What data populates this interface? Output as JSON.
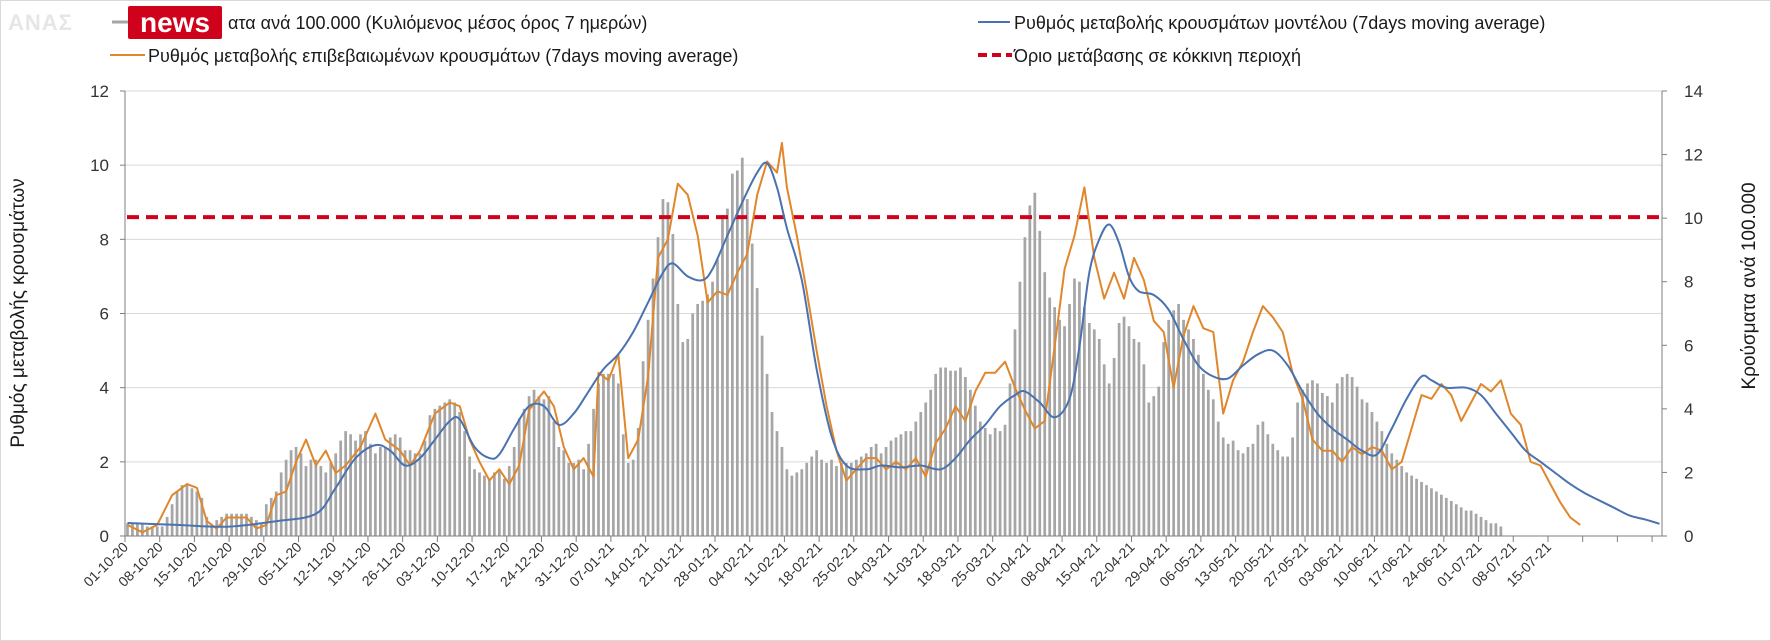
{
  "logo": {
    "prefix": "ΑΝΑΣ",
    "brand": "news"
  },
  "legend": {
    "bars": "ατα ανά 100.000 (Κυλιόμενος μέσος όρος 7 ημερών)",
    "confirmed": "Ρυθμός μεταβολής επιβεβαιωμένων κρουσμάτων (7days moving average)",
    "model": "Ρυθμός μεταβολής κρουσμάτων μοντέλου (7days moving average)",
    "threshold": "Όριο μετάβασης σε κόκκινη περιοχή"
  },
  "colors": {
    "bars": "#a6a6a6",
    "confirmed": "#e0862b",
    "model": "#4a72b0",
    "threshold": "#d0021b"
  },
  "chart_data": {
    "type": "bar+line",
    "x_ticks": [
      "01-10-20",
      "08-10-20",
      "15-10-20",
      "22-10-20",
      "29-10-20",
      "05-11-20",
      "12-11-20",
      "19-11-20",
      "26-11-20",
      "03-12-20",
      "10-12-20",
      "17-12-20",
      "24-12-20",
      "31-12-20",
      "07-01-21",
      "14-01-21",
      "21-01-21",
      "28-01-21",
      "04-02-21",
      "11-02-21",
      "18-02-21",
      "25-02-21",
      "04-03-21",
      "11-03-21",
      "18-03-21",
      "25-03-21",
      "01-04-21",
      "08-04-21",
      "15-04-21",
      "22-04-21",
      "29-04-21",
      "06-05-21",
      "13-05-21",
      "20-05-21",
      "27-05-21",
      "03-06-21",
      "10-06-21",
      "17-06-21",
      "24-06-21",
      "01-07-21",
      "08-07-21",
      "15-07-21"
    ],
    "y_left": {
      "label": "Ρυθμός μεταβολής κρουσμάτων",
      "ylim": [
        0,
        12
      ],
      "ticks": [
        "0",
        "2",
        "4",
        "6",
        "8",
        "10",
        "12"
      ]
    },
    "y_right": {
      "label": "Κρούσματα ανά 100.000",
      "ylim": [
        0,
        14
      ],
      "ticks": [
        "0",
        "2",
        "4",
        "6",
        "8",
        "10",
        "12",
        "14"
      ]
    },
    "threshold_value": 8.6,
    "bars_values_right_axis": [
      0.4,
      0.4,
      0.4,
      0.4,
      0.3,
      0.3,
      0.3,
      0.3,
      0.6,
      1,
      1.4,
      1.6,
      1.6,
      1.5,
      1.4,
      1.2,
      0.6,
      0.3,
      0.5,
      0.6,
      0.7,
      0.7,
      0.7,
      0.7,
      0.7,
      0.6,
      0.5,
      0.4,
      1,
      1.2,
      1.4,
      2,
      2.4,
      2.7,
      2.8,
      2.6,
      2.2,
      2.4,
      2.4,
      2.2,
      2,
      2.3,
      2.6,
      3,
      3.3,
      3.2,
      3,
      3.2,
      3.3,
      2.9,
      2.6,
      2.8,
      2.8,
      3.1,
      3.2,
      3.1,
      2.7,
      2.7,
      2.6,
      2.6,
      3,
      3.8,
      4,
      4.1,
      4.2,
      4.3,
      4.2,
      3.9,
      3.3,
      2.5,
      2.1,
      2,
      1.9,
      1.8,
      2,
      2.1,
      1.8,
      2.2,
      2.8,
      3.7,
      4,
      4.4,
      4.6,
      4.4,
      4.3,
      4.4,
      3.6,
      2.8,
      2.7,
      2.3,
      2.3,
      2.4,
      2.1,
      2.9,
      4,
      4.8,
      5.1,
      5.1,
      5.1,
      4.8,
      3.2,
      2.3,
      2.4,
      3.4,
      5.5,
      6.8,
      8.1,
      9.4,
      10.6,
      10.5,
      9.5,
      7.3,
      6.1,
      6.2,
      7,
      7.3,
      7.4,
      7.6,
      8,
      8.7,
      10.1,
      10.3,
      11.4,
      11.5,
      11.9,
      10.6,
      9.2,
      7.8,
      6.3,
      5.1,
      3.9,
      3.3,
      2.8,
      2.1,
      1.9,
      2,
      2.1,
      2.3,
      2.5,
      2.7,
      2.4,
      2.3,
      2.4,
      2.2,
      2.3,
      2.3,
      2.3,
      2.4,
      2.5,
      2.6,
      2.8,
      2.9,
      2.6,
      2.8,
      3,
      3.1,
      3.2,
      3.3,
      3.3,
      3.6,
      3.9,
      4.2,
      4.6,
      5.1,
      5.3,
      5.3,
      5.2,
      5.2,
      5.3,
      5,
      4.6,
      4.1,
      3.6,
      3.4,
      3.2,
      3.4,
      3.3,
      3.5,
      4.8,
      6.5,
      8,
      9.4,
      10.4,
      10.8,
      9.6,
      8.3,
      7.5,
      7.2,
      6.8,
      6.6,
      7.3,
      8.1,
      8,
      7.2,
      6.7,
      6.5,
      6.2,
      5.4,
      4.8,
      5.6,
      6.7,
      6.9,
      6.6,
      6.2,
      6.1,
      5.4,
      4.2,
      4.4,
      4.7,
      6.1,
      6.8,
      7.1,
      7.3,
      6.8,
      6.5,
      6.2,
      5.7,
      5.1,
      4.6,
      4.3,
      3.6,
      3.1,
      2.9,
      3,
      2.7,
      2.6,
      2.8,
      2.9,
      3.5,
      3.6,
      3.2,
      2.9,
      2.7,
      2.5,
      2.5,
      3.1,
      4.2,
      4.6,
      4.8,
      4.9,
      4.8,
      4.5,
      4.4,
      4.2,
      4.8,
      5,
      5.1,
      5,
      4.7,
      4.3,
      4.2,
      3.9,
      3.6,
      3.3,
      2.9,
      2.6,
      2.4,
      2.2,
      2,
      1.9,
      1.8,
      1.7,
      1.6,
      1.5,
      1.4,
      1.3,
      1.2,
      1.1,
      1,
      0.9,
      0.8,
      0.8,
      0.7,
      0.6,
      0.5,
      0.4,
      0.4,
      0.3
    ],
    "confirmed_rate_keypoints": [
      [
        0,
        0.3
      ],
      [
        3,
        0.1
      ],
      [
        6,
        0.3
      ],
      [
        9,
        1.1
      ],
      [
        12,
        1.4
      ],
      [
        14,
        1.3
      ],
      [
        16,
        0.4
      ],
      [
        18,
        0.2
      ],
      [
        20,
        0.5
      ],
      [
        24,
        0.5
      ],
      [
        26,
        0.2
      ],
      [
        28,
        0.3
      ],
      [
        30,
        1.1
      ],
      [
        32,
        1.2
      ],
      [
        34,
        2.0
      ],
      [
        36,
        2.6
      ],
      [
        38,
        1.9
      ],
      [
        40,
        2.3
      ],
      [
        42,
        1.7
      ],
      [
        44,
        1.9
      ],
      [
        47,
        2.4
      ],
      [
        50,
        3.3
      ],
      [
        52,
        2.6
      ],
      [
        55,
        2.3
      ],
      [
        57,
        1.9
      ],
      [
        59,
        2.3
      ],
      [
        62,
        3.3
      ],
      [
        65,
        3.6
      ],
      [
        67,
        3.5
      ],
      [
        69,
        2.6
      ],
      [
        71,
        2.0
      ],
      [
        73,
        1.5
      ],
      [
        75,
        1.8
      ],
      [
        77,
        1.4
      ],
      [
        79,
        1.9
      ],
      [
        81,
        3.4
      ],
      [
        84,
        3.9
      ],
      [
        86,
        3.5
      ],
      [
        88,
        2.4
      ],
      [
        90,
        1.8
      ],
      [
        92,
        2.1
      ],
      [
        94,
        1.6
      ],
      [
        95,
        4.4
      ],
      [
        97,
        4.2
      ],
      [
        99,
        4.9
      ],
      [
        101,
        2.1
      ],
      [
        103,
        2.6
      ],
      [
        105,
        4.3
      ],
      [
        107,
        7.5
      ],
      [
        109,
        8.0
      ],
      [
        111,
        9.5
      ],
      [
        113,
        9.2
      ],
      [
        115,
        8.1
      ],
      [
        117,
        6.3
      ],
      [
        119,
        6.6
      ],
      [
        121,
        6.5
      ],
      [
        123,
        7.1
      ],
      [
        125,
        7.6
      ],
      [
        127,
        9.2
      ],
      [
        129,
        10.1
      ],
      [
        131,
        9.8
      ],
      [
        132,
        10.6
      ],
      [
        133,
        9.4
      ],
      [
        135,
        8.1
      ],
      [
        137,
        6.6
      ],
      [
        139,
        5.0
      ],
      [
        141,
        3.5
      ],
      [
        143,
        2.3
      ],
      [
        145,
        1.5
      ],
      [
        147,
        1.8
      ],
      [
        149,
        2.1
      ],
      [
        151,
        2.1
      ],
      [
        153,
        1.8
      ],
      [
        155,
        2.0
      ],
      [
        157,
        1.8
      ],
      [
        159,
        2.1
      ],
      [
        161,
        1.6
      ],
      [
        163,
        2.5
      ],
      [
        165,
        2.9
      ],
      [
        167,
        3.5
      ],
      [
        169,
        3.1
      ],
      [
        171,
        3.9
      ],
      [
        173,
        4.4
      ],
      [
        175,
        4.4
      ],
      [
        177,
        4.7
      ],
      [
        179,
        4.0
      ],
      [
        181,
        3.4
      ],
      [
        183,
        2.9
      ],
      [
        185,
        3.1
      ],
      [
        187,
        5.1
      ],
      [
        189,
        7.2
      ],
      [
        191,
        8.1
      ],
      [
        193,
        9.4
      ],
      [
        195,
        7.5
      ],
      [
        197,
        6.4
      ],
      [
        199,
        7.1
      ],
      [
        201,
        6.4
      ],
      [
        203,
        7.5
      ],
      [
        205,
        6.9
      ],
      [
        207,
        5.8
      ],
      [
        209,
        5.5
      ],
      [
        211,
        4.0
      ],
      [
        213,
        5.4
      ],
      [
        215,
        6.2
      ],
      [
        217,
        5.6
      ],
      [
        219,
        5.5
      ],
      [
        221,
        3.3
      ],
      [
        223,
        4.2
      ],
      [
        225,
        4.7
      ],
      [
        227,
        5.5
      ],
      [
        229,
        6.2
      ],
      [
        231,
        5.9
      ],
      [
        233,
        5.5
      ],
      [
        235,
        4.4
      ],
      [
        237,
        3.7
      ],
      [
        239,
        2.6
      ],
      [
        241,
        2.3
      ],
      [
        243,
        2.3
      ],
      [
        245,
        2.0
      ],
      [
        247,
        2.4
      ],
      [
        249,
        2.2
      ],
      [
        251,
        2.4
      ],
      [
        253,
        2.3
      ],
      [
        255,
        1.8
      ],
      [
        257,
        2.0
      ],
      [
        259,
        2.9
      ],
      [
        261,
        3.8
      ],
      [
        263,
        3.7
      ],
      [
        265,
        4.1
      ],
      [
        267,
        3.8
      ],
      [
        269,
        3.1
      ],
      [
        271,
        3.6
      ],
      [
        273,
        4.1
      ],
      [
        275,
        3.9
      ],
      [
        277,
        4.2
      ],
      [
        279,
        3.3
      ],
      [
        281,
        3.0
      ],
      [
        283,
        2.0
      ],
      [
        285,
        1.9
      ],
      [
        287,
        1.4
      ],
      [
        289,
        0.9
      ],
      [
        291,
        0.5
      ],
      [
        293,
        0.3
      ]
    ],
    "model_rate_keypoints": [
      [
        0,
        0.35
      ],
      [
        10,
        0.3
      ],
      [
        20,
        0.25
      ],
      [
        30,
        0.4
      ],
      [
        38,
        0.6
      ],
      [
        42,
        1.3
      ],
      [
        46,
        2.1
      ],
      [
        50,
        2.45
      ],
      [
        53,
        2.3
      ],
      [
        56,
        1.9
      ],
      [
        59,
        2.1
      ],
      [
        62,
        2.6
      ],
      [
        65,
        3.1
      ],
      [
        67,
        3.15
      ],
      [
        70,
        2.4
      ],
      [
        73,
        2.1
      ],
      [
        75,
        2.2
      ],
      [
        78,
        2.9
      ],
      [
        81,
        3.5
      ],
      [
        84,
        3.5
      ],
      [
        87,
        3.0
      ],
      [
        90,
        3.3
      ],
      [
        93,
        3.9
      ],
      [
        96,
        4.5
      ],
      [
        99,
        4.9
      ],
      [
        102,
        5.5
      ],
      [
        105,
        6.3
      ],
      [
        108,
        7.1
      ],
      [
        110,
        7.35
      ],
      [
        113,
        7.0
      ],
      [
        116,
        6.9
      ],
      [
        118,
        7.2
      ],
      [
        121,
        8.1
      ],
      [
        124,
        9.0
      ],
      [
        127,
        9.8
      ],
      [
        129,
        10.05
      ],
      [
        131,
        9.4
      ],
      [
        133,
        8.3
      ],
      [
        136,
        6.9
      ],
      [
        139,
        4.5
      ],
      [
        142,
        2.7
      ],
      [
        145,
        1.9
      ],
      [
        149,
        1.8
      ],
      [
        152,
        1.9
      ],
      [
        156,
        1.85
      ],
      [
        160,
        1.9
      ],
      [
        164,
        1.8
      ],
      [
        167,
        2.1
      ],
      [
        170,
        2.6
      ],
      [
        173,
        3.0
      ],
      [
        176,
        3.5
      ],
      [
        179,
        3.8
      ],
      [
        181,
        3.9
      ],
      [
        184,
        3.6
      ],
      [
        187,
        3.2
      ],
      [
        190,
        3.7
      ],
      [
        192,
        5.1
      ],
      [
        194,
        7.1
      ],
      [
        196,
        8.0
      ],
      [
        198,
        8.4
      ],
      [
        200,
        7.9
      ],
      [
        202,
        7.0
      ],
      [
        204,
        6.6
      ],
      [
        207,
        6.5
      ],
      [
        210,
        6.1
      ],
      [
        213,
        5.3
      ],
      [
        216,
        4.6
      ],
      [
        219,
        4.3
      ],
      [
        222,
        4.25
      ],
      [
        225,
        4.6
      ],
      [
        228,
        4.9
      ],
      [
        231,
        5.0
      ],
      [
        234,
        4.6
      ],
      [
        237,
        3.9
      ],
      [
        240,
        3.3
      ],
      [
        243,
        2.9
      ],
      [
        246,
        2.6
      ],
      [
        249,
        2.3
      ],
      [
        252,
        2.2
      ],
      [
        255,
        2.9
      ],
      [
        258,
        3.7
      ],
      [
        261,
        4.3
      ],
      [
        263,
        4.2
      ],
      [
        266,
        4.0
      ],
      [
        270,
        4.0
      ],
      [
        273,
        3.8
      ],
      [
        276,
        3.3
      ],
      [
        279,
        2.8
      ],
      [
        282,
        2.3
      ],
      [
        285,
        2.0
      ],
      [
        288,
        1.7
      ],
      [
        291,
        1.4
      ],
      [
        294,
        1.15
      ],
      [
        297,
        0.95
      ],
      [
        300,
        0.75
      ],
      [
        303,
        0.55
      ],
      [
        306,
        0.45
      ],
      [
        309,
        0.33
      ]
    ]
  }
}
